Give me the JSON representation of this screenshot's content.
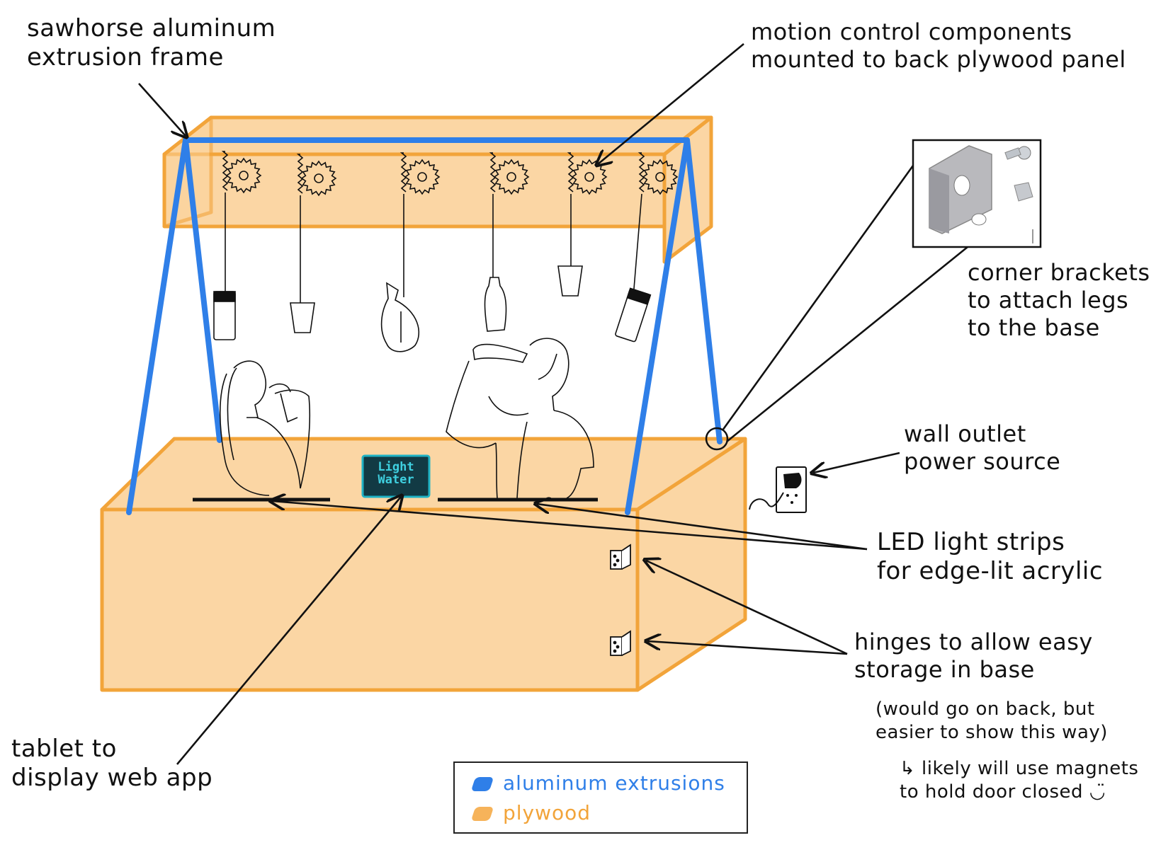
{
  "labels": {
    "frame": "sawhorse aluminum\nextrusion frame",
    "motion": "motion control components\nmounted to back plywood panel",
    "brackets": "corner brackets\nto attach legs\nto the base",
    "outlet": "wall outlet\npower source",
    "led": "LED light strips\nfor edge-lit acrylic",
    "hinges": "hinges to allow easy\nstorage in base",
    "hinges_note": "(would go on back, but\neasier to show this way)",
    "magnets": "↳ likely will use magnets\nto hold door closed ◡̈",
    "tablet": "tablet to\ndisplay web app"
  },
  "tablet_screen": "Light\nWater",
  "legend": {
    "aluminum": "aluminum  extrusions",
    "plywood": "plywood"
  },
  "colors": {
    "plywood_fill": "#fbd19a",
    "plywood_edge": "#f2a43a",
    "aluminum": "#2f7fe8",
    "tablet_bg": "#123a44",
    "tablet_border": "#1fb2c4"
  }
}
